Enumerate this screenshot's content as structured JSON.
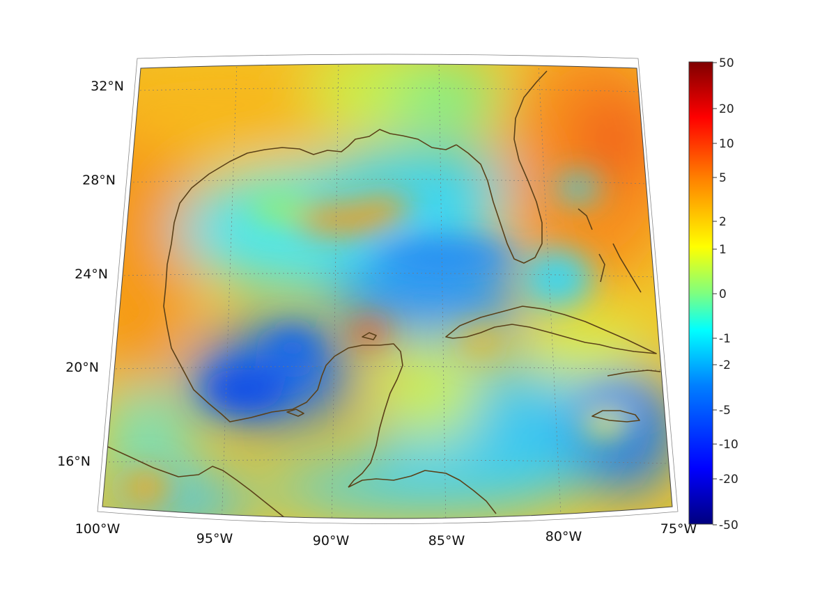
{
  "map": {
    "lon_labels": [
      "100°W",
      "95°W",
      "90°W",
      "85°W",
      "80°W",
      "75°W"
    ],
    "lat_labels": [
      "32°N",
      "28°N",
      "24°N",
      "20°N",
      "16°N"
    ]
  },
  "colorbar": {
    "tick_labels": [
      "50",
      "20",
      "10",
      "5",
      "2",
      "1",
      "0",
      "-1",
      "-2",
      "-5",
      "-10",
      "-20",
      "-50"
    ],
    "colormap": "jet",
    "colors": [
      "#00007f",
      "#0000ff",
      "#007fff",
      "#00ffff",
      "#7fff7f",
      "#ffff00",
      "#ff7f00",
      "#ff0000",
      "#7f0000"
    ]
  }
}
